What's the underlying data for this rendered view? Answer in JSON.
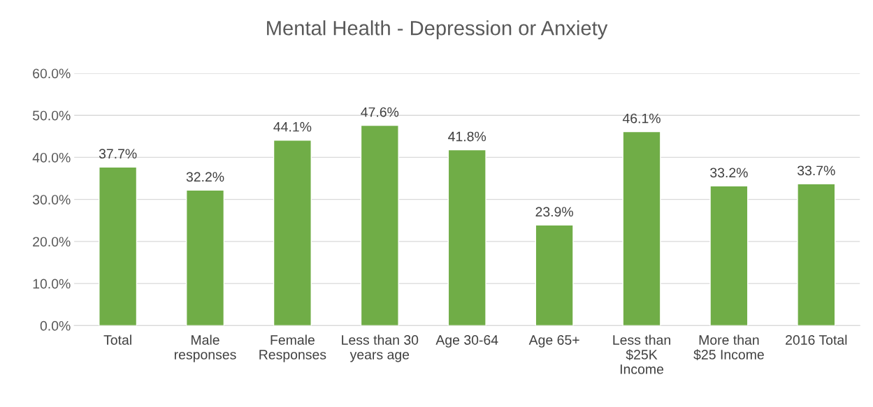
{
  "chart_data": {
    "type": "bar",
    "title": "Mental Health - Depression or Anxiety",
    "categories": [
      "Total",
      "Male\nresponses",
      "Female\nResponses",
      "Less than 30\nyears age",
      "Age 30-64",
      "Age 65+",
      "Less than\n$25K\nIncome",
      "More than\n$25 Income",
      "2016 Total"
    ],
    "values": [
      37.7,
      32.2,
      44.1,
      47.6,
      41.8,
      23.9,
      46.1,
      33.2,
      33.7
    ],
    "value_labels": [
      "37.7%",
      "32.2%",
      "44.1%",
      "47.6%",
      "41.8%",
      "23.9%",
      "46.1%",
      "33.2%",
      "33.7%"
    ],
    "color": "#70ad47",
    "ylim": [
      0,
      60
    ],
    "yticks": [
      {
        "value": 0,
        "label": "0.0%"
      },
      {
        "value": 10,
        "label": "10.0%"
      },
      {
        "value": 20,
        "label": "20.0%"
      },
      {
        "value": 30,
        "label": "30.0%"
      },
      {
        "value": 40,
        "label": "40.0%"
      },
      {
        "value": 50,
        "label": "50.0%"
      },
      {
        "value": 60,
        "label": "60.0%"
      }
    ],
    "grid": "y"
  }
}
